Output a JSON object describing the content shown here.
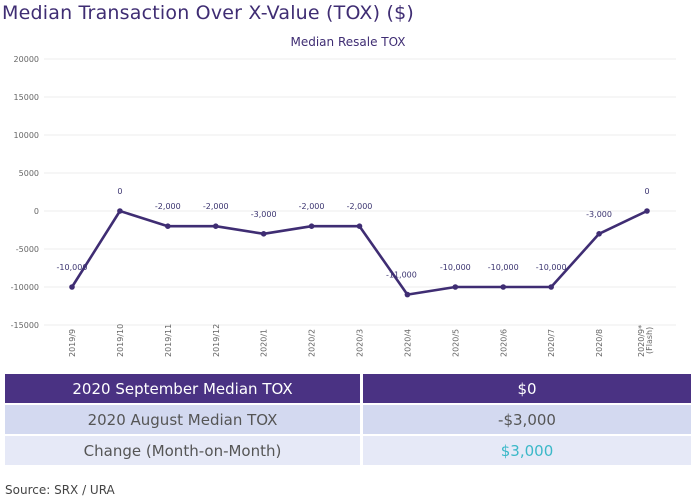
{
  "header": {
    "title": "Median Transaction Over X-Value (TOX) ($)"
  },
  "chart_data": {
    "type": "line",
    "title": "Median Resale TOX",
    "xlabel": "",
    "ylabel": "",
    "ylim": [
      -15000,
      20000
    ],
    "yticks": [
      20000,
      15000,
      10000,
      5000,
      0,
      -5000,
      -10000,
      -15000
    ],
    "ytick_labels": [
      "20000",
      "15000",
      "10000",
      "5000",
      "0",
      "-5000",
      "-10000",
      "-15000"
    ],
    "grid": true,
    "categories": [
      "2019/9",
      "2019/10",
      "2019/11",
      "2019/12",
      "2020/1",
      "2020/2",
      "2020/3",
      "2020/4",
      "2020/5",
      "2020/6",
      "2020/7",
      "2020/8",
      "2020/9*"
    ],
    "category_sublabels": [
      "",
      "",
      "",
      "",
      "",
      "",
      "",
      "",
      "",
      "",
      "",
      "",
      "(Flash)"
    ],
    "series": [
      {
        "name": "Median Resale TOX",
        "color": "#3f2d73",
        "values": [
          -10000,
          0,
          -2000,
          -2000,
          -3000,
          -2000,
          -2000,
          -11000,
          -10000,
          -10000,
          -10000,
          -3000,
          0
        ],
        "data_labels": [
          "-10,000",
          "0",
          "-2,000",
          "-2,000",
          "-3,000",
          "-2,000",
          "-2,000",
          "-11,000",
          "-10,000",
          "-10,000",
          "-10,000",
          "-3,000",
          "0"
        ]
      }
    ]
  },
  "summary_table": {
    "rows": [
      {
        "label": "2020 September Median TOX",
        "value": "$0"
      },
      {
        "label": "2020 August Median TOX",
        "value": "-$3,000"
      },
      {
        "label": "Change (Month-on-Month)",
        "value": "$3,000"
      }
    ],
    "change_color": "#3bb8c8",
    "header_color": "#4a3283"
  },
  "footer": {
    "source": "Source: SRX / URA"
  }
}
